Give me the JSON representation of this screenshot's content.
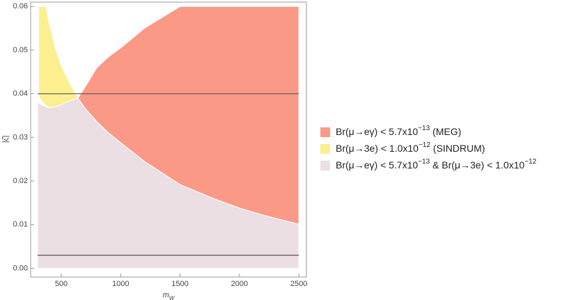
{
  "chart_data": {
    "type": "region",
    "xlabel": [
      {
        "text": "m"
      },
      {
        "text": "W",
        "sub": true
      }
    ],
    "ylabel": "|ζ|",
    "xlim": [
      242,
      2564
    ],
    "ylim": [
      -0.002,
      0.061
    ],
    "xticks": [
      500,
      1000,
      1500,
      2000,
      2500
    ],
    "yticks": [
      {
        "value": 0,
        "label": "0.00"
      },
      0.01,
      0.02,
      0.03,
      0.04,
      0.05,
      0.06
    ],
    "hlines": [
      0.04,
      0.003
    ],
    "hline_color": "#555555",
    "series": [
      {
        "name": [
          {
            "text": "Br(μ→eγ) < 5.7x10"
          },
          {
            "text": "−13",
            "sup": true
          },
          {
            "text": "  &  Br(μ→3e) < 1.0x10"
          },
          {
            "text": "−12",
            "sup": true
          }
        ],
        "color": "#ebdfe4",
        "x": [
          300,
          350,
          400,
          450,
          500,
          550,
          600,
          640,
          700,
          800,
          900,
          1000,
          1200,
          1500,
          1800,
          2000,
          2200,
          2500
        ],
        "lower": [
          0,
          0,
          0,
          0,
          0,
          0,
          0,
          0,
          0,
          0,
          0,
          0,
          0,
          0,
          0,
          0,
          0,
          0
        ],
        "upper": [
          0.038,
          0.0372,
          0.0368,
          0.037,
          0.0375,
          0.0381,
          0.0386,
          0.039,
          0.0367,
          0.0336,
          0.031,
          0.0288,
          0.0245,
          0.0192,
          0.0158,
          0.0138,
          0.0122,
          0.0101
        ]
      },
      {
        "name": [
          {
            "text": "Br(μ→eγ) < 5.7x10"
          },
          {
            "text": "−13",
            "sup": true
          },
          {
            "text": " (MEG)"
          }
        ],
        "color": "#fa9a86",
        "x": [
          640,
          700,
          800,
          900,
          1000,
          1200,
          1500,
          1800,
          2000,
          2200,
          2500
        ],
        "lower": [
          0.039,
          0.0367,
          0.0336,
          0.031,
          0.0288,
          0.0245,
          0.0192,
          0.0158,
          0.0138,
          0.0122,
          0.0101
        ],
        "upper": [
          0.039,
          0.0415,
          0.046,
          0.0485,
          0.0505,
          0.055,
          0.06,
          0.06,
          0.06,
          0.06,
          0.06
        ]
      },
      {
        "name": [
          {
            "text": "Br(μ→3e) < 1.0x10"
          },
          {
            "text": "−12",
            "sup": true
          },
          {
            "text": " (SINDRUM)"
          }
        ],
        "color": "#fbef90",
        "x": [
          310,
          330,
          370,
          400,
          450,
          500,
          550,
          600,
          640
        ],
        "lower": [
          0.0395,
          0.0385,
          0.0373,
          0.0368,
          0.037,
          0.0375,
          0.0381,
          0.0386,
          0.039
        ],
        "upper": [
          0.06,
          0.06,
          0.06,
          0.056,
          0.0505,
          0.0465,
          0.0435,
          0.041,
          0.039
        ]
      }
    ],
    "legend_order": [
      1,
      2,
      0
    ]
  }
}
